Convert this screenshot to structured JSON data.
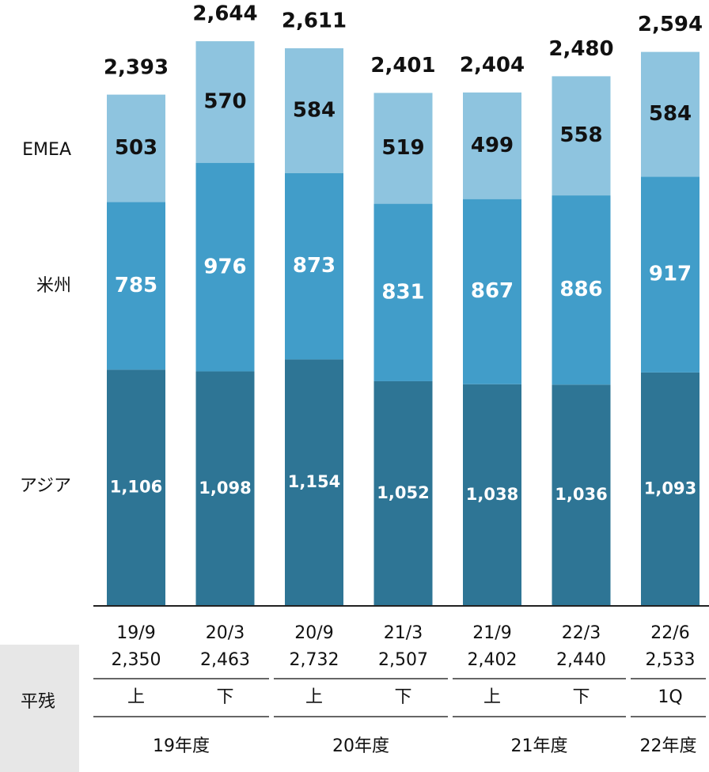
{
  "chart_data": {
    "type": "stacked_bar",
    "categories": [
      "19/9",
      "20/3",
      "20/9",
      "21/3",
      "21/9",
      "22/3",
      "22/6"
    ],
    "series": [
      {
        "name": "アジア",
        "color": "#2e7595",
        "values": [
          1106,
          1098,
          1154,
          1052,
          1038,
          1036,
          1093
        ],
        "value_labels": [
          "1,106",
          "1,098",
          "1,154",
          "1,052",
          "1,038",
          "1,036",
          "1,093"
        ]
      },
      {
        "name": "米州",
        "color": "#419dc9",
        "values": [
          785,
          976,
          873,
          831,
          867,
          886,
          917
        ]
      },
      {
        "name": "EMEA",
        "color": "#8ec4df",
        "values": [
          503,
          570,
          584,
          519,
          499,
          558,
          584
        ]
      }
    ],
    "totals": {
      "values": [
        2393,
        2644,
        2611,
        2401,
        2404,
        2480,
        2594
      ],
      "value_labels": [
        "2,393",
        "2,644",
        "2,611",
        "2,401",
        "2,404",
        "2,480",
        "2,594"
      ]
    },
    "ylim": [
      0,
      2800
    ]
  },
  "table": {
    "label": "平残",
    "averages": [
      "2,350",
      "2,463",
      "2,732",
      "2,507",
      "2,402",
      "2,440",
      "2,533"
    ],
    "halves": [
      "上",
      "下",
      "上",
      "下",
      "上",
      "下",
      "1Q"
    ],
    "years": [
      "19年度",
      "20年度",
      "21年度",
      "22年度"
    ]
  }
}
